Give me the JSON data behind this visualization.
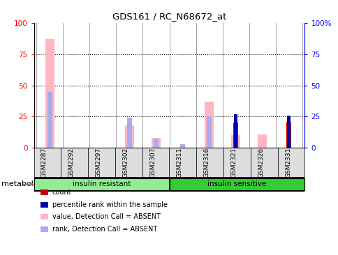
{
  "title": "GDS161 / RC_N68672_at",
  "samples": [
    "GSM2287",
    "GSM2292",
    "GSM2297",
    "GSM2302",
    "GSM2307",
    "GSM2311",
    "GSM2316",
    "GSM2321",
    "GSM2326",
    "GSM2331"
  ],
  "groups": [
    {
      "label": "insulin resistant",
      "color": "#90EE90",
      "start": 0,
      "end": 5
    },
    {
      "label": "insulin sensitive",
      "color": "#33CC33",
      "start": 5,
      "end": 10
    }
  ],
  "value_absent": [
    87,
    0,
    0,
    18,
    8,
    0,
    37,
    10,
    11,
    0
  ],
  "rank_absent": [
    45,
    0,
    0,
    24,
    7,
    3,
    25,
    0,
    0,
    0
  ],
  "count": [
    0,
    0,
    0,
    0,
    0,
    0,
    0,
    20,
    0,
    21
  ],
  "percentile_rank": [
    0,
    0,
    0,
    0,
    0,
    0,
    0,
    27,
    0,
    26
  ],
  "ylim": [
    0,
    100
  ],
  "yticks": [
    0,
    25,
    50,
    75,
    100
  ],
  "color_value_absent": "#FFB6C1",
  "color_rank_absent": "#AAAAEE",
  "color_count": "#CC0000",
  "color_percentile": "#0000AA",
  "background_color": "#ffffff",
  "xticklabel_bg": "#DDDDDD",
  "metadata_label": "metabolism"
}
